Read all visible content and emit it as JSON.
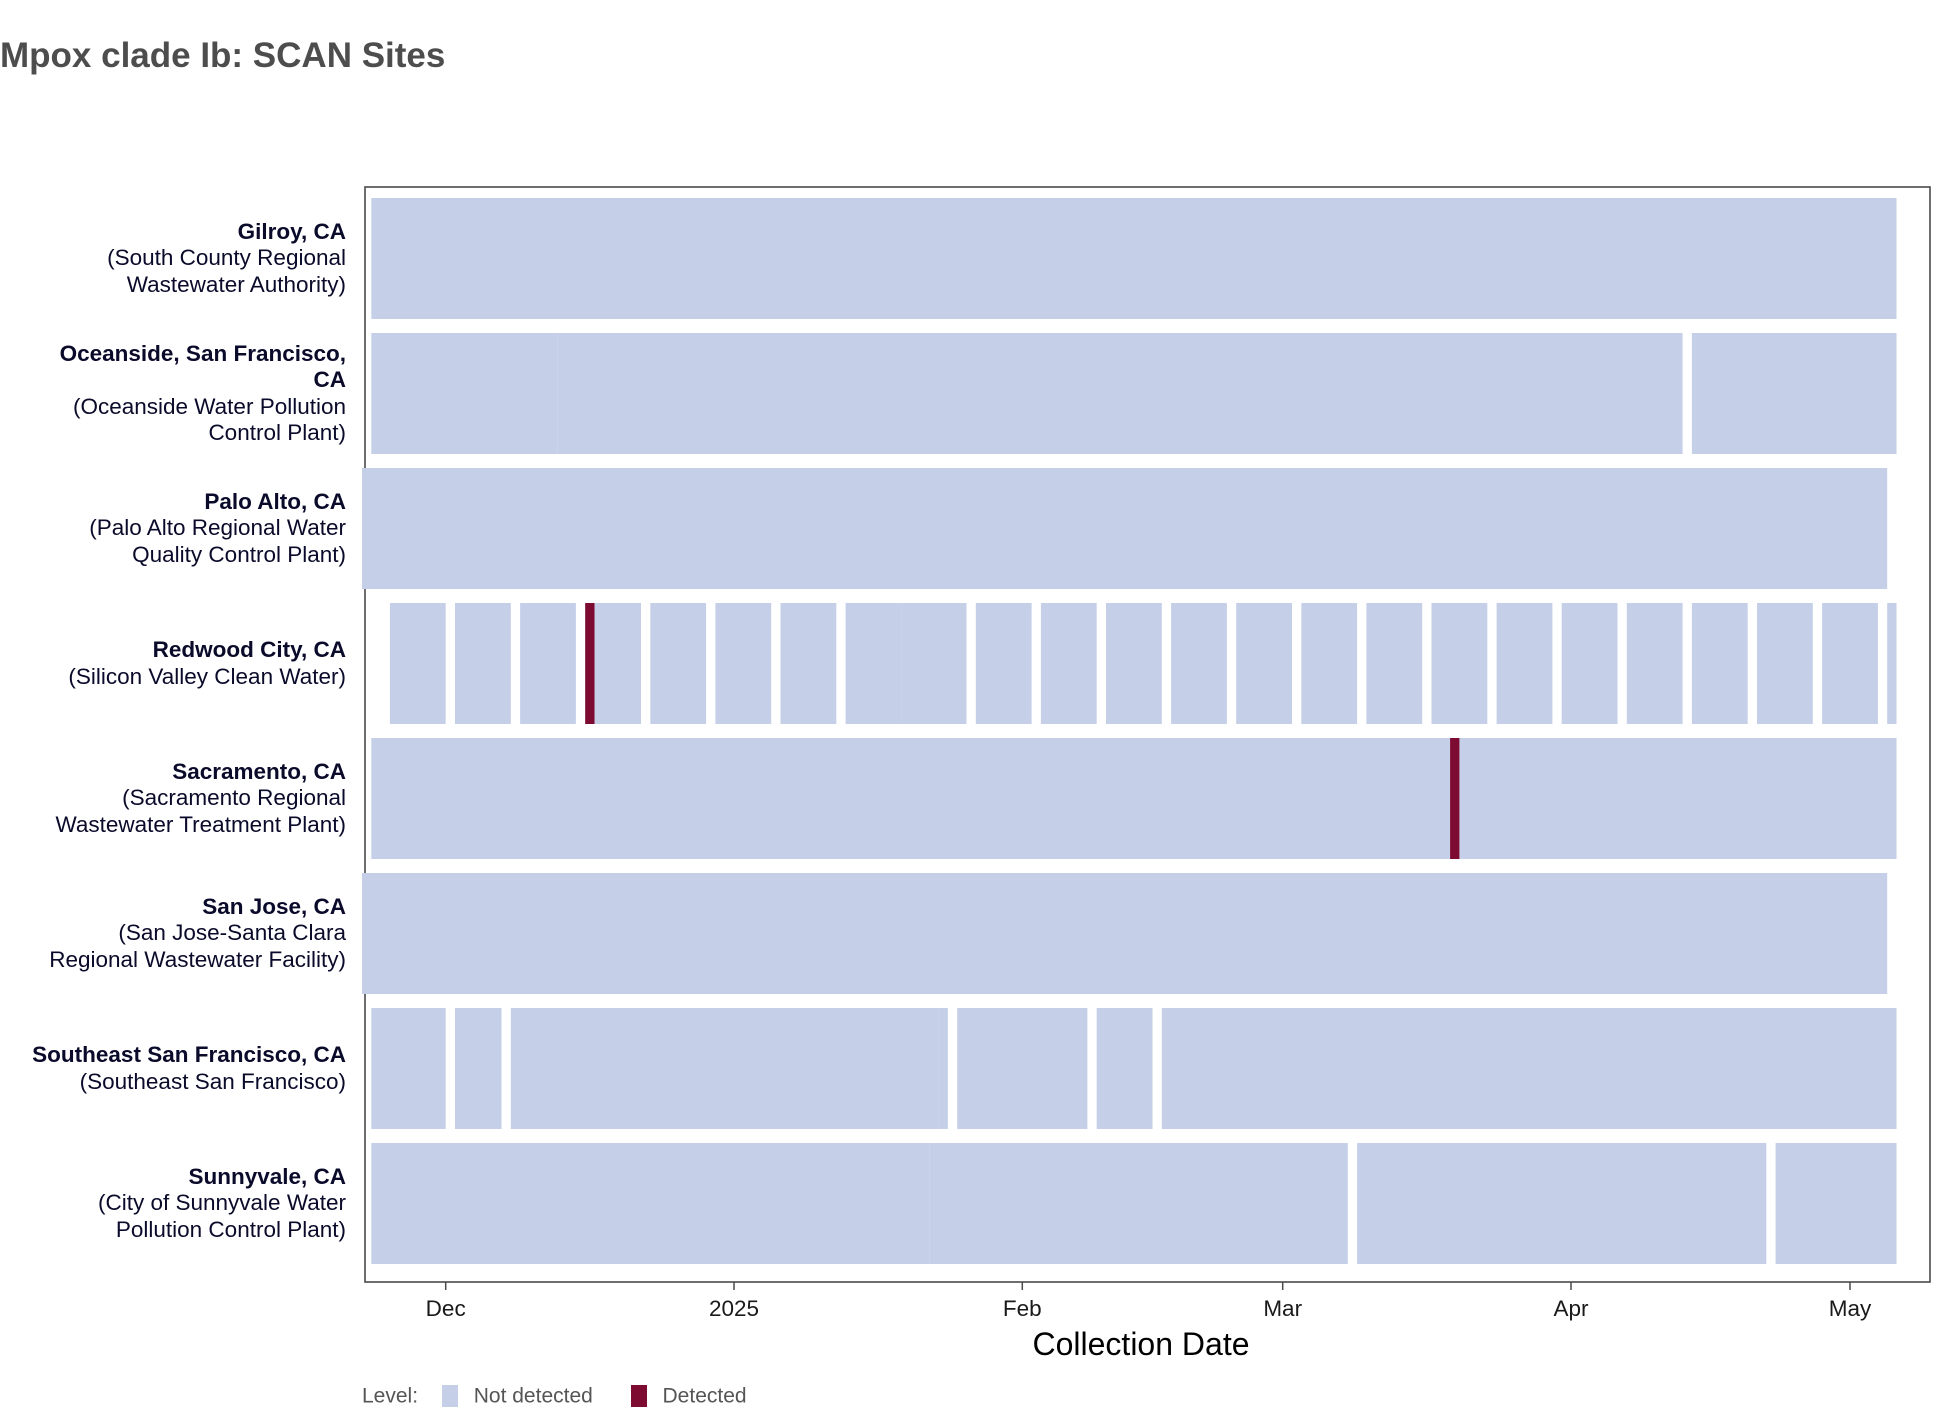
{
  "title": "Mpox clade Ib: SCAN Sites",
  "chart_data": {
    "type": "heatmap",
    "xlabel": "Collection Date",
    "x_range": [
      "2024-11-23",
      "2025-05-05"
    ],
    "x_ticks": [
      {
        "label": "Dec",
        "date": "2024-12-01"
      },
      {
        "label": "2025",
        "date": "2025-01-01"
      },
      {
        "label": "Feb",
        "date": "2025-02-01"
      },
      {
        "label": "Mar",
        "date": "2025-03-01"
      },
      {
        "label": "Apr",
        "date": "2025-04-01"
      },
      {
        "label": "May",
        "date": "2025-05-01"
      }
    ],
    "legend": {
      "title": "Level:",
      "placement": "bottom-left",
      "items": [
        {
          "label": "Not detected",
          "color": "#c5cfe8"
        },
        {
          "label": "Detected",
          "color": "#7d0a30"
        }
      ]
    },
    "sites": [
      {
        "name": "Gilroy, CA",
        "facility": "(South County Regional Wastewater Authority)",
        "coverage": [
          [
            "2024-11-23",
            "2025-05-05"
          ]
        ],
        "detected": []
      },
      {
        "name": "Oceanside, San Francisco, CA",
        "facility": "(Oceanside Water Pollution Control Plant)",
        "coverage": [
          [
            "2024-11-23",
            "2024-12-12"
          ],
          [
            "2024-12-13",
            "2025-04-12"
          ],
          [
            "2025-04-14",
            "2025-05-05"
          ]
        ],
        "detected": []
      },
      {
        "name": "Palo Alto, CA",
        "facility": "(Palo Alto Regional Water Quality Control Plant)",
        "coverage": [
          [
            "2024-11-22",
            "2025-05-04"
          ]
        ],
        "detected": []
      },
      {
        "name": "Redwood City, CA",
        "facility": "(Silicon Valley Clean Water)",
        "coverage": [
          [
            "2024-11-25",
            "2024-11-30"
          ],
          [
            "2024-12-02",
            "2024-12-07"
          ],
          [
            "2024-12-09",
            "2024-12-14"
          ],
          [
            "2024-12-16",
            "2024-12-21"
          ],
          [
            "2024-12-23",
            "2024-12-28"
          ],
          [
            "2024-12-30",
            "2025-01-04"
          ],
          [
            "2025-01-06",
            "2025-01-11"
          ],
          [
            "2025-01-13",
            "2025-01-18"
          ],
          [
            "2025-01-19",
            "2025-01-20"
          ],
          [
            "2025-01-21",
            "2025-01-25"
          ],
          [
            "2025-01-27",
            "2025-02-01"
          ],
          [
            "2025-02-03",
            "2025-02-08"
          ],
          [
            "2025-02-10",
            "2025-02-15"
          ],
          [
            "2025-02-17",
            "2025-02-22"
          ],
          [
            "2025-02-24",
            "2025-03-01"
          ],
          [
            "2025-03-03",
            "2025-03-08"
          ],
          [
            "2025-03-10",
            "2025-03-15"
          ],
          [
            "2025-03-17",
            "2025-03-22"
          ],
          [
            "2025-03-24",
            "2025-03-29"
          ],
          [
            "2025-03-31",
            "2025-04-05"
          ],
          [
            "2025-04-07",
            "2025-04-12"
          ],
          [
            "2025-04-14",
            "2025-04-19"
          ],
          [
            "2025-04-21",
            "2025-04-26"
          ],
          [
            "2025-04-28",
            "2025-05-03"
          ],
          [
            "2025-05-05",
            "2025-05-05"
          ]
        ],
        "detected": [
          "2024-12-16"
        ]
      },
      {
        "name": "Sacramento, CA",
        "facility": "(Sacramento Regional Wastewater Treatment Plant)",
        "coverage": [
          [
            "2024-11-23",
            "2025-05-05"
          ]
        ],
        "detected": [
          "2025-03-19"
        ]
      },
      {
        "name": "San Jose, CA",
        "facility": "(San Jose-Santa Clara Regional Wastewater Facility)",
        "coverage": [
          [
            "2024-11-22",
            "2025-05-04"
          ]
        ],
        "detected": []
      },
      {
        "name": "Southeast San Francisco, CA",
        "facility": "(Southeast San Francisco)",
        "coverage": [
          [
            "2024-11-23",
            "2024-11-30"
          ],
          [
            "2024-12-02",
            "2024-12-06"
          ],
          [
            "2024-12-08",
            "2025-01-22"
          ],
          [
            "2025-01-23",
            "2025-01-23"
          ],
          [
            "2025-01-25",
            "2025-02-07"
          ],
          [
            "2025-02-09",
            "2025-02-14"
          ],
          [
            "2025-02-16",
            "2025-05-05"
          ]
        ],
        "detected": []
      },
      {
        "name": "Sunnyvale, CA",
        "facility": "(City of Sunnyvale Water Pollution Control Plant)",
        "coverage": [
          [
            "2024-11-23",
            "2025-01-21"
          ],
          [
            "2025-01-22",
            "2025-03-07"
          ],
          [
            "2025-03-09",
            "2025-04-21"
          ],
          [
            "2025-04-23",
            "2025-05-05"
          ]
        ],
        "detected": []
      }
    ]
  }
}
